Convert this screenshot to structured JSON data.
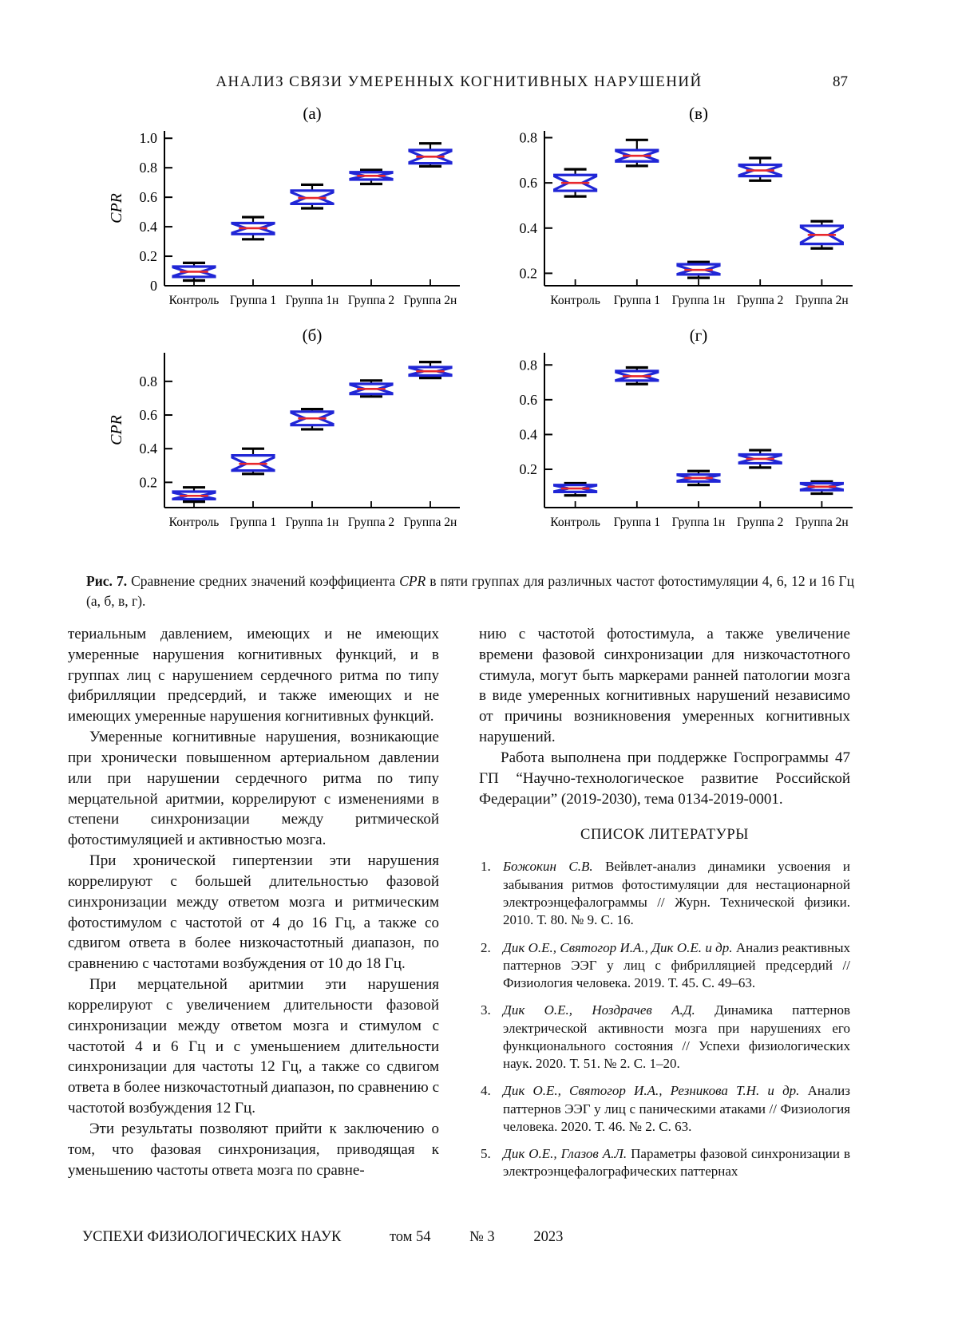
{
  "page": {
    "header": {
      "title": "АНАЛИЗ СВЯЗИ УМЕРЕННЫХ КОГНИТИВНЫХ НАРУШЕНИЙ",
      "page_number": "87"
    },
    "footer": {
      "journal": "УСПЕХИ ФИЗИОЛОГИЧЕСКИХ НАУК",
      "volume": "том 54",
      "issue": "№ 3",
      "year": "2023"
    }
  },
  "figure": {
    "caption_label": "Рис. 7.",
    "caption_before_cpr": " Сравнение средних значений коэффициента ",
    "caption_cpr": "CPR",
    "caption_after_cpr": " в пяти группах для различных частот фотостимуляции 4, 6, 12 и 16 Гц (а, б, в, г)."
  },
  "colors": {
    "box": "#2026d6",
    "median": "#e8282d",
    "whisker": "#000000",
    "axis": "#000000"
  },
  "chart_data": [
    {
      "type": "boxplot",
      "panel": "(а)",
      "stimulation_frequency_hz": 4,
      "ylabel": "CPR",
      "ylim": [
        0,
        1.05
      ],
      "yticks": [
        0,
        0.2,
        0.4,
        0.6,
        0.8,
        1.0
      ],
      "ytick_labels": [
        "0",
        "0.2",
        "0.4",
        "0.6",
        "0.8",
        "1.0"
      ],
      "categories": [
        "Контроль",
        "Группа 1",
        "Группа 1н",
        "Группа 2",
        "Группа 2н"
      ],
      "boxes": [
        {
          "whislo": 0.035,
          "q1": 0.06,
          "med": 0.095,
          "q3": 0.13,
          "whishi": 0.155
        },
        {
          "whislo": 0.315,
          "q1": 0.35,
          "med": 0.39,
          "q3": 0.425,
          "whishi": 0.465
        },
        {
          "whislo": 0.525,
          "q1": 0.555,
          "med": 0.595,
          "q3": 0.645,
          "whishi": 0.685
        },
        {
          "whislo": 0.69,
          "q1": 0.72,
          "med": 0.745,
          "q3": 0.77,
          "whishi": 0.785
        },
        {
          "whislo": 0.81,
          "q1": 0.83,
          "med": 0.875,
          "q3": 0.92,
          "whishi": 0.965
        }
      ]
    },
    {
      "type": "boxplot",
      "panel": "(б)",
      "stimulation_frequency_hz": 6,
      "ylabel": "CPR",
      "ylim": [
        0.05,
        0.97
      ],
      "yticks": [
        0.2,
        0.4,
        0.6,
        0.8
      ],
      "ytick_labels": [
        "0.2",
        "0.4",
        "0.6",
        "0.8"
      ],
      "categories": [
        "Контроль",
        "Группа 1",
        "Группа 1н",
        "Группа 2",
        "Группа 2н"
      ],
      "boxes": [
        {
          "whislo": 0.085,
          "q1": 0.1,
          "med": 0.12,
          "q3": 0.145,
          "whishi": 0.17
        },
        {
          "whislo": 0.25,
          "q1": 0.27,
          "med": 0.31,
          "q3": 0.36,
          "whishi": 0.4
        },
        {
          "whislo": 0.515,
          "q1": 0.54,
          "med": 0.58,
          "q3": 0.62,
          "whishi": 0.635
        },
        {
          "whislo": 0.71,
          "q1": 0.725,
          "med": 0.755,
          "q3": 0.785,
          "whishi": 0.805
        },
        {
          "whislo": 0.82,
          "q1": 0.835,
          "med": 0.86,
          "q3": 0.885,
          "whishi": 0.915
        }
      ]
    },
    {
      "type": "boxplot",
      "panel": "(в)",
      "stimulation_frequency_hz": 12,
      "ylabel": "",
      "ylim": [
        0.145,
        0.83
      ],
      "yticks": [
        0.2,
        0.4,
        0.6,
        0.8
      ],
      "ytick_labels": [
        "0.2",
        "0.4",
        "0.6",
        "0.8"
      ],
      "categories": [
        "Контроль",
        "Группа 1",
        "Группа 1н",
        "Группа 2",
        "Группа 2н"
      ],
      "boxes": [
        {
          "whislo": 0.54,
          "q1": 0.565,
          "med": 0.6,
          "q3": 0.635,
          "whishi": 0.66
        },
        {
          "whislo": 0.675,
          "q1": 0.695,
          "med": 0.72,
          "q3": 0.745,
          "whishi": 0.79
        },
        {
          "whislo": 0.18,
          "q1": 0.195,
          "med": 0.215,
          "q3": 0.24,
          "whishi": 0.25
        },
        {
          "whislo": 0.61,
          "q1": 0.63,
          "med": 0.655,
          "q3": 0.68,
          "whishi": 0.71
        },
        {
          "whislo": 0.31,
          "q1": 0.33,
          "med": 0.37,
          "q3": 0.41,
          "whishi": 0.43
        }
      ]
    },
    {
      "type": "boxplot",
      "panel": "(г)",
      "stimulation_frequency_hz": 16,
      "ylabel": "",
      "ylim": [
        -0.02,
        0.87
      ],
      "yticks": [
        0.2,
        0.4,
        0.6,
        0.8
      ],
      "ytick_labels": [
        "0.2",
        "0.4",
        "0.6",
        "0.8"
      ],
      "categories": [
        "Контроль",
        "Группа 1",
        "Группа 1н",
        "Группа 2",
        "Группа 2н"
      ],
      "boxes": [
        {
          "whislo": 0.05,
          "q1": 0.07,
          "med": 0.09,
          "q3": 0.11,
          "whishi": 0.12
        },
        {
          "whislo": 0.69,
          "q1": 0.71,
          "med": 0.735,
          "q3": 0.765,
          "whishi": 0.785
        },
        {
          "whislo": 0.11,
          "q1": 0.13,
          "med": 0.15,
          "q3": 0.17,
          "whishi": 0.19
        },
        {
          "whislo": 0.21,
          "q1": 0.235,
          "med": 0.26,
          "q3": 0.285,
          "whishi": 0.31
        },
        {
          "whislo": 0.06,
          "q1": 0.08,
          "med": 0.1,
          "q3": 0.12,
          "whishi": 0.13
        }
      ]
    }
  ],
  "body": {
    "left_column": [
      {
        "indent": false,
        "text": "териальным давлением, имеющих и не имеющих умеренные нарушения когнитивных функций, и в группах лиц с нарушением сердечного ритма по типу фибрилляции предсердий, и также имеющих и не имеющих умеренные нарушения когнитивных функций."
      },
      {
        "indent": true,
        "text": "Умеренные когнитивные нарушения, возникающие при хронически повышенном артериальном давлении или при нарушении сердечного ритма по типу мерцательной аритмии, коррелируют с изменениями в степени синхронизации между ритмической фотостимуляцией и активностью мозга."
      },
      {
        "indent": true,
        "text": "При хронической гипертензии эти нарушения коррелируют с большей длительностью фазовой синхронизации между ответом мозга и ритмическим фотостимулом с частотой от 4 до 16 Гц, а также со сдвигом ответа в более низкочастотный диапазон, по сравнению с частотами возбуждения от 10 до 18 Гц."
      },
      {
        "indent": true,
        "text": "При мерцательной аритмии эти нарушения коррелируют с увеличением длительности фазовой синхронизации между ответом мозга и стимулом с частотой 4 и 6 Гц и с уменьшением длительности синхронизации для частоты 12 Гц, а также со сдвигом ответа в более низкочастотный диапазон, по сравнению с частотой возбуждения 12 Гц."
      },
      {
        "indent": true,
        "text": "Эти результаты позволяют прийти к заключению о том, что фазовая синхронизация, приводящая к уменьшению частоты ответа мозга по сравне-"
      }
    ],
    "right_column": [
      {
        "indent": false,
        "text": "нию с частотой фотостимула, а также увеличение времени фазовой синхронизации для низкочастотного стимула, могут быть маркерами ранней патологии мозга в виде умеренных когнитивных нарушений независимо от причины возникновения умеренных когнитивных нарушений."
      },
      {
        "indent": true,
        "text": "Работа выполнена при поддержке Госпрограммы 47 ГП “Научно-технологическое развитие Российской Федерации” (2019-2030), тема 0134-2019-0001."
      }
    ],
    "references_heading": "СПИСОК ЛИТЕРАТУРЫ",
    "references": [
      {
        "num": "1.",
        "authors": "Божокин С.В.",
        "text": "Вейвлет-анализ динамики усвоения и забывания ритмов фотостимуляции для нестационарной электроэнцефалограммы // Журн. Технической физики. 2010. Т. 80. № 9. С. 16."
      },
      {
        "num": "2.",
        "authors": "Дик О.Е., Святогор И.А., Дик О.Е. и др.",
        "text": "Анализ реактивных паттернов ЭЭГ у лиц с фибрилляцией предсердий // Физиология человека. 2019. Т. 45. С. 49–63."
      },
      {
        "num": "3.",
        "authors": "Дик О.Е., Ноздрачев А.Д.",
        "text": "Динамика паттернов электрической активности мозга при нарушениях его функционального состояния // Успехи физиологических наук. 2020. Т. 51. № 2. С. 1–20."
      },
      {
        "num": "4.",
        "authors": "Дик О.Е., Святогор И.А., Резникова Т.Н. и др.",
        "text": "Анализ паттернов ЭЭГ у лиц с паническими атаками // Физиология человека. 2020. Т. 46. № 2. С. 63."
      },
      {
        "num": "5.",
        "authors": "Дик О.Е., Глазов А.Л.",
        "text": "Параметры фазовой синхронизации в электроэнцефалографических паттернах"
      }
    ]
  }
}
